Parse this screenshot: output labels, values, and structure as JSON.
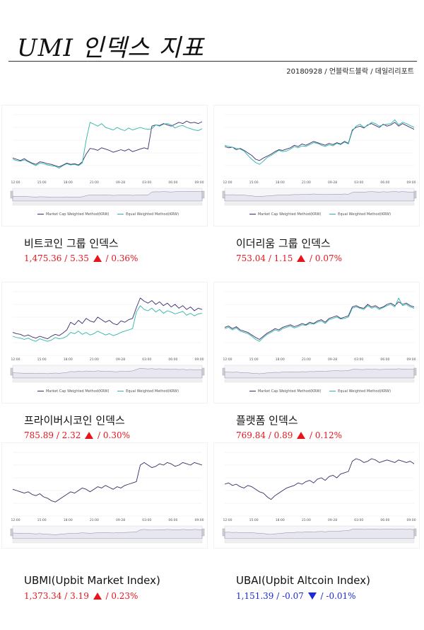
{
  "header": {
    "title": "UMI 인덱스 지표",
    "subline": "20180928 / 언블락드블락 / 데일리리포트"
  },
  "legend": {
    "market_cap": "Market Cap Weighted Method(KRW)",
    "equal_weight": "Equal Weighted Method(KRW)"
  },
  "colors": {
    "market_cap_line": "#3e2a6e",
    "equal_weight_line": "#2bb6a6",
    "single_line": "#3b2b63",
    "up": "#e8141b",
    "down": "#1a2bd6",
    "grid": "#ececec",
    "navigator_fill": "#e7e7f0"
  },
  "panels": [
    {
      "name": "비트코인 그룹 인덱스",
      "value": "1,475.36",
      "change": "5.35",
      "percent": "0.36%",
      "direction": "up",
      "chart_data": {
        "type": "line",
        "x_ticks": [
          "12:00",
          "15:00",
          "18:00",
          "21:00",
          "09-28",
          "03:00",
          "06:00",
          "09:00"
        ],
        "y_ticks": [
          "",
          "",
          "",
          "",
          ""
        ],
        "ylim": [
          0,
          100
        ],
        "legend_position": "bottom",
        "series": [
          {
            "name": "Market Cap Weighted Method(KRW)",
            "key": "mc",
            "values": [
              32,
              30,
              28,
              31,
              27,
              24,
              22,
              26,
              25,
              23,
              22,
              20,
              18,
              21,
              24,
              22,
              23,
              21,
              26,
              38,
              47,
              46,
              44,
              48,
              46,
              44,
              41,
              43,
              45,
              43,
              46,
              42,
              44,
              46,
              48,
              46,
              82,
              84,
              83,
              86,
              84,
              82,
              85,
              88,
              86,
              90,
              87,
              88,
              86,
              89
            ]
          },
          {
            "name": "Equal Weighted Method(KRW)",
            "key": "ew",
            "values": [
              30,
              28,
              27,
              29,
              26,
              23,
              20,
              24,
              23,
              21,
              20,
              19,
              16,
              20,
              23,
              21,
              22,
              20,
              24,
              60,
              88,
              85,
              82,
              86,
              80,
              78,
              76,
              80,
              77,
              75,
              79,
              76,
              78,
              80,
              78,
              77,
              78,
              84,
              82,
              85,
              86,
              84,
              79,
              82,
              83,
              80,
              78,
              76,
              75,
              78
            ]
          }
        ]
      }
    },
    {
      "name": "이더리움 그룹 인덱스",
      "value": "753.04",
      "change": "1.15",
      "percent": "0.07%",
      "direction": "up",
      "chart_data": {
        "type": "line",
        "x_ticks": [
          "12:00",
          "15:00",
          "18:00",
          "21:00",
          "09-28",
          "03:00",
          "06:00",
          "09:00"
        ],
        "y_ticks": [
          "",
          "",
          "",
          ""
        ],
        "ylim": [
          0,
          100
        ],
        "legend_position": "bottom",
        "series": [
          {
            "name": "Market Cap Weighted Method(KRW)",
            "key": "mc",
            "values": [
              50,
              48,
              49,
              45,
              47,
              44,
              40,
              36,
              30,
              28,
              32,
              35,
              38,
              42,
              45,
              44,
              46,
              48,
              52,
              50,
              54,
              52,
              55,
              58,
              56,
              54,
              52,
              55,
              53,
              56,
              54,
              58,
              55,
              76,
              80,
              82,
              79,
              84,
              86,
              83,
              80,
              85,
              82,
              84,
              88,
              82,
              86,
              83,
              80,
              77
            ]
          },
          {
            "name": "Equal Weighted Method(KRW)",
            "key": "ew",
            "values": [
              52,
              50,
              49,
              47,
              46,
              43,
              36,
              30,
              25,
              22,
              27,
              33,
              36,
              40,
              44,
              42,
              43,
              46,
              50,
              48,
              51,
              50,
              53,
              56,
              55,
              52,
              50,
              53,
              51,
              55,
              53,
              57,
              54,
              74,
              82,
              85,
              80,
              83,
              88,
              86,
              82,
              84,
              85,
              86,
              92,
              84,
              88,
              86,
              83,
              80
            ]
          }
        ]
      }
    },
    {
      "name": "프라이버시코인 인덱스",
      "value": "785.89",
      "change": "2.32",
      "percent": "0.30%",
      "direction": "up",
      "chart_data": {
        "type": "line",
        "x_ticks": [
          "12:00",
          "15:00",
          "18:00",
          "21:00",
          "09-28",
          "03:00",
          "06:00",
          "09:00"
        ],
        "y_ticks": [
          "",
          "",
          "",
          "",
          ""
        ],
        "ylim": [
          0,
          100
        ],
        "legend_position": "bottom",
        "series": [
          {
            "name": "Market Cap Weighted Method(KRW)",
            "key": "mc",
            "values": [
              36,
              34,
              33,
              30,
              32,
              29,
              27,
              30,
              28,
              26,
              30,
              33,
              31,
              35,
              40,
              52,
              48,
              55,
              50,
              58,
              54,
              52,
              60,
              56,
              52,
              55,
              50,
              48,
              54,
              52,
              56,
              58,
              75,
              90,
              85,
              82,
              86,
              80,
              84,
              78,
              82,
              76,
              80,
              74,
              78,
              72,
              76,
              70,
              74,
              72
            ]
          },
          {
            "name": "Equal Weighted Method(KRW)",
            "key": "ew",
            "values": [
              30,
              28,
              27,
              25,
              27,
              24,
              22,
              26,
              24,
              22,
              24,
              28,
              26,
              27,
              30,
              36,
              34,
              38,
              33,
              36,
              32,
              34,
              38,
              35,
              32,
              34,
              31,
              33,
              36,
              38,
              40,
              42,
              68,
              78,
              72,
              70,
              74,
              68,
              72,
              66,
              70,
              68,
              65,
              67,
              69,
              63,
              66,
              62,
              65,
              66
            ]
          }
        ]
      }
    },
    {
      "name": "플랫폼 인덱스",
      "value": "769.84",
      "change": "0.89",
      "percent": "0.12%",
      "direction": "up",
      "chart_data": {
        "type": "line",
        "x_ticks": [
          "12:00",
          "15:00",
          "18:00",
          "21:00",
          "09-28",
          "03:00",
          "06:00",
          "09:00"
        ],
        "y_ticks": [
          "",
          "",
          "",
          "",
          ""
        ],
        "ylim": [
          0,
          100
        ],
        "legend_position": "bottom",
        "series": [
          {
            "name": "Market Cap Weighted Method(KRW)",
            "key": "mc",
            "values": [
              44,
              46,
              42,
              45,
              40,
              38,
              36,
              32,
              28,
              25,
              30,
              35,
              38,
              42,
              40,
              44,
              46,
              48,
              45,
              47,
              50,
              48,
              52,
              50,
              54,
              56,
              52,
              58,
              60,
              62,
              58,
              60,
              62,
              76,
              78,
              75,
              74,
              80,
              76,
              78,
              74,
              76,
              80,
              82,
              78,
              84,
              80,
              82,
              78,
              76
            ]
          },
          {
            "name": "Equal Weighted Method(KRW)",
            "key": "ew",
            "values": [
              42,
              44,
              40,
              43,
              38,
              36,
              34,
              30,
              25,
              22,
              28,
              33,
              36,
              40,
              38,
              42,
              44,
              46,
              43,
              45,
              48,
              47,
              50,
              49,
              52,
              54,
              50,
              56,
              58,
              60,
              57,
              58,
              60,
              74,
              76,
              74,
              72,
              78,
              74,
              76,
              72,
              75,
              78,
              80,
              76,
              90,
              78,
              80,
              76,
              74
            ]
          }
        ]
      }
    },
    {
      "name": "UBMI(Upbit Market Index)",
      "value": "1,373.34",
      "change": "3.19",
      "percent": "0.23%",
      "direction": "up",
      "chart_data": {
        "type": "line",
        "x_ticks": [
          "12:00",
          "15:00",
          "18:00",
          "21:00",
          "09-28",
          "03:00",
          "06:00",
          "09:00"
        ],
        "y_ticks": [
          "",
          "",
          "",
          ""
        ],
        "ylim": [
          0,
          100
        ],
        "legend_position": "none",
        "series": [
          {
            "name": "",
            "key": "single",
            "values": [
              42,
              40,
              38,
              36,
              38,
              34,
              32,
              35,
              30,
              28,
              24,
              22,
              26,
              30,
              34,
              38,
              36,
              40,
              44,
              42,
              38,
              42,
              46,
              44,
              48,
              45,
              42,
              46,
              44,
              48,
              50,
              52,
              54,
              80,
              84,
              80,
              76,
              78,
              82,
              80,
              84,
              82,
              78,
              80,
              84,
              82,
              80,
              84,
              82,
              80
            ]
          }
        ]
      }
    },
    {
      "name": "UBAI(Upbit Altcoin Index)",
      "value": "1,151.39",
      "change": "-0.07",
      "percent": "-0.01%",
      "direction": "down",
      "chart_data": {
        "type": "line",
        "x_ticks": [
          "12:00",
          "15:00",
          "18:00",
          "21:00",
          "09-28",
          "03:00",
          "06:00",
          "09:00"
        ],
        "y_ticks": [
          "",
          "",
          "",
          ""
        ],
        "ylim": [
          0,
          100
        ],
        "legend_position": "none",
        "series": [
          {
            "name": "",
            "key": "single",
            "values": [
              50,
              52,
              48,
              50,
              46,
              44,
              48,
              46,
              42,
              38,
              36,
              30,
              26,
              32,
              36,
              40,
              44,
              46,
              48,
              52,
              50,
              54,
              56,
              52,
              58,
              60,
              56,
              62,
              64,
              60,
              66,
              68,
              70,
              86,
              90,
              88,
              84,
              86,
              90,
              88,
              84,
              86,
              88,
              86,
              84,
              88,
              86,
              84,
              86,
              82
            ]
          }
        ]
      }
    }
  ]
}
